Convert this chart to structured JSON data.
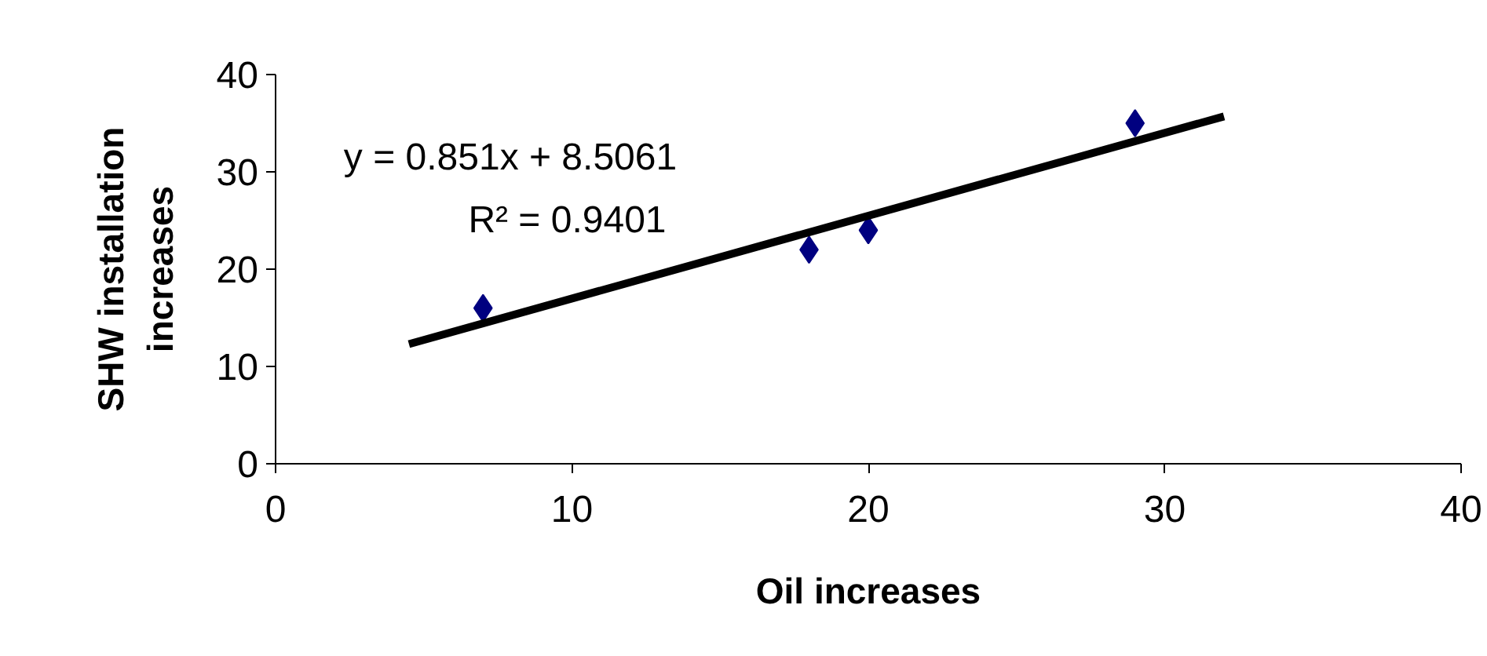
{
  "chart_data": {
    "type": "scatter",
    "xlabel": "Oil increases",
    "ylabel": "SHW installation\nincreases",
    "annotations": [
      "y = 0.851x + 8.5061",
      "R² = 0.9401"
    ],
    "xlim": [
      0,
      40
    ],
    "xticks": [
      0,
      10,
      20,
      30,
      40
    ],
    "ylim": [
      0,
      40
    ],
    "yticks": [
      0,
      10,
      20,
      30,
      40
    ],
    "grid": false,
    "series": [
      {
        "marker": "diamond",
        "color": "#000080",
        "x": [
          7,
          18,
          20,
          29
        ],
        "values": [
          16,
          22,
          24,
          35
        ]
      },
      {
        "type": "line",
        "marker": "none",
        "color": "#000000",
        "x": [
          4.5,
          32
        ],
        "values": [
          12.3,
          35.7
        ]
      }
    ]
  }
}
